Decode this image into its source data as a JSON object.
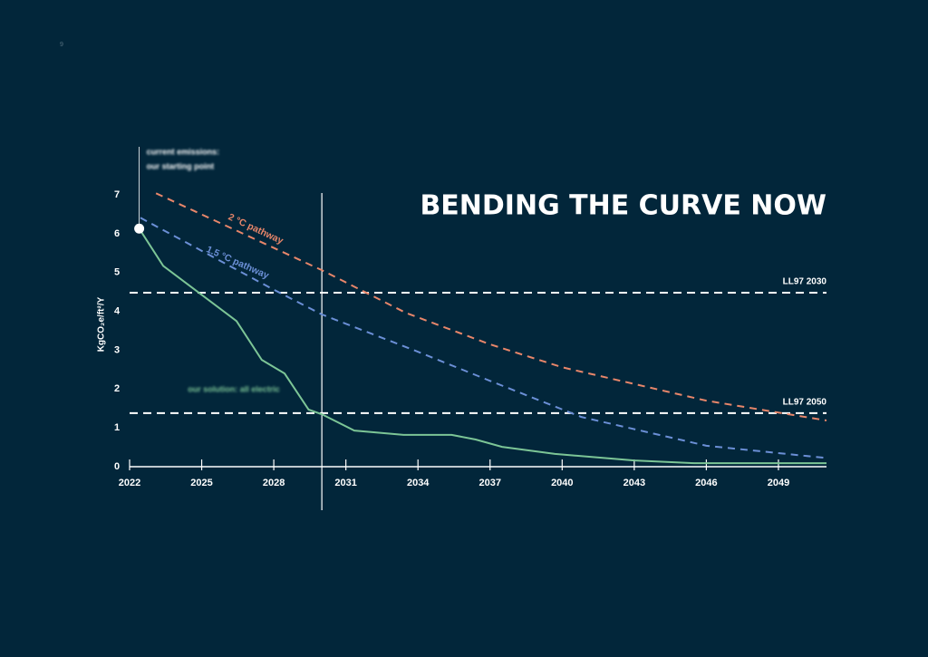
{
  "page_number": "9",
  "chart_data": {
    "type": "line",
    "title": "BENDING THE CURVE NOW",
    "y_label": "KgCO₂e/ft²/Y",
    "xlim": [
      2022,
      2051
    ],
    "ylim": [
      0,
      7
    ],
    "xticks": [
      2022,
      2025,
      2028,
      2031,
      2034,
      2037,
      2040,
      2043,
      2046,
      2049
    ],
    "yticks": [
      0,
      1,
      2,
      3,
      4,
      5,
      6,
      7
    ],
    "series": [
      {
        "name": "our solution: all electric",
        "color": "#7cc596",
        "dashed": false,
        "x": [
          2022.4,
          2023.4,
          2026.45,
          2027.5,
          2028.45,
          2029.45,
          2030,
          2031.35,
          2033.4,
          2035.4,
          2036.4,
          2037.5,
          2039.7,
          2043,
          2045.5,
          2051
        ],
        "values": [
          6.13,
          5.17,
          3.75,
          2.75,
          2.4,
          1.47,
          1.35,
          0.93,
          0.82,
          0.82,
          0.7,
          0.51,
          0.33,
          0.16,
          0.09,
          0.09
        ]
      },
      {
        "name": "2 °C pathway",
        "color": "#e8866a",
        "dashed": true,
        "x": [
          2023.1,
          2030,
          2033.5,
          2037,
          2040,
          2046,
          2051
        ],
        "values": [
          7.04,
          5.06,
          3.96,
          3.15,
          2.56,
          1.7,
          1.19
        ]
      },
      {
        "name": "1.5 °C pathway",
        "color": "#6b8fd6",
        "dashed": true,
        "x": [
          2022.45,
          2027.9,
          2030,
          2034,
          2037,
          2040.8,
          2046,
          2050.9
        ],
        "values": [
          6.41,
          4.59,
          3.92,
          2.96,
          2.21,
          1.28,
          0.54,
          0.23
        ]
      }
    ],
    "reference_lines": [
      {
        "label": "LL97 2030",
        "value": 4.48
      },
      {
        "label": "LL97 2050",
        "value": 1.38
      }
    ],
    "marker_x": 2030,
    "start_point": {
      "label": [
        "current emissions:",
        "our starting point"
      ],
      "x": 2022.4,
      "value": 6.13
    }
  }
}
